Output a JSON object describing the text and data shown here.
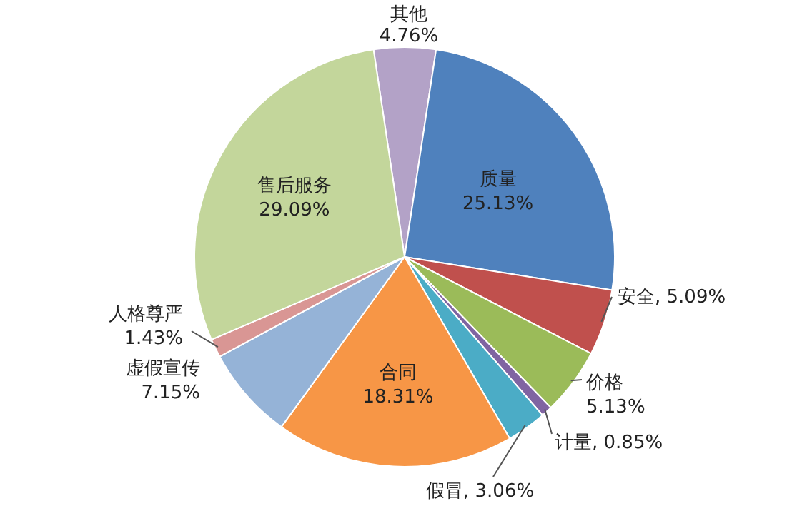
{
  "chart_data": {
    "type": "pie",
    "categories": [
      "其他",
      "质量",
      "安全",
      "价格",
      "计量",
      "假冒",
      "合同",
      "虚假宣传",
      "人格尊严",
      "售后服务"
    ],
    "values": [
      4.76,
      25.13,
      5.09,
      5.13,
      0.85,
      3.06,
      18.31,
      7.15,
      1.43,
      29.09
    ],
    "value_labels": [
      "4.76%",
      "25.13%",
      "5.09%",
      "5.13%",
      "0.85%",
      "3.06%",
      "18.31%",
      "7.15%",
      "1.43%",
      "29.09%"
    ],
    "colors": [
      "#b3a2c7",
      "#4f81bd",
      "#c0504d",
      "#9bbb59",
      "#8064a2",
      "#4bacc6",
      "#f79646",
      "#95b3d7",
      "#d99694",
      "#c3d69b"
    ]
  }
}
